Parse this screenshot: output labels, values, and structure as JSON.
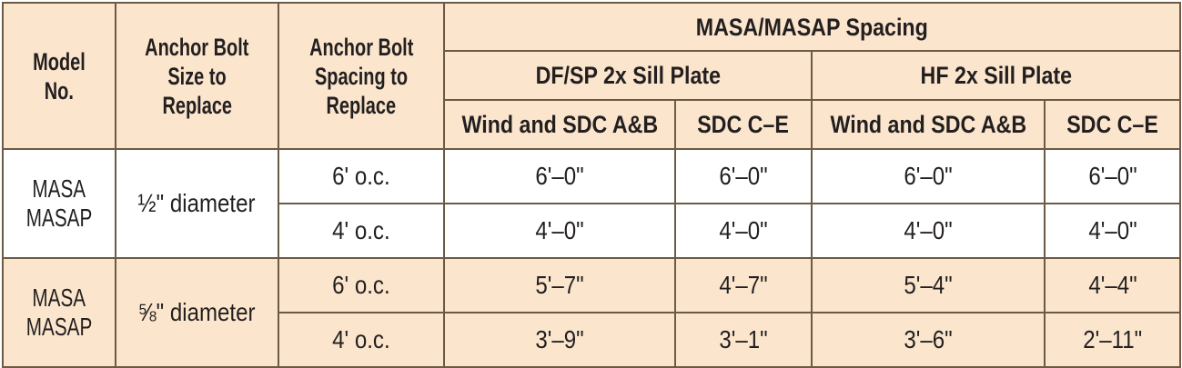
{
  "table": {
    "headers": {
      "model": [
        "Model",
        "No."
      ],
      "bolt_size": [
        "Anchor Bolt",
        "Size to",
        "Replace"
      ],
      "bolt_spacing": [
        "Anchor Bolt",
        "Spacing to",
        "Replace"
      ],
      "group": "MASA/MASAP Spacing",
      "plate_df": "DF/SP 2x Sill Plate",
      "plate_hf": "HF 2x Sill Plate",
      "wind": "Wind and SDC A&B",
      "sdc": "SDC C–E"
    },
    "groups": [
      {
        "model": [
          "MASA",
          "MASAP"
        ],
        "size": "½\" diameter",
        "rows": [
          {
            "spacing": "6' o.c.",
            "df_wind": "6'–0\"",
            "df_sdc": "6'–0\"",
            "hf_wind": "6'–0\"",
            "hf_sdc": "6'–0\""
          },
          {
            "spacing": "4' o.c.",
            "df_wind": "4'–0\"",
            "df_sdc": "4'–0\"",
            "hf_wind": "4'–0\"",
            "hf_sdc": "4'–0\""
          }
        ]
      },
      {
        "model": [
          "MASA",
          "MASAP"
        ],
        "size": "⅝\" diameter",
        "rows": [
          {
            "spacing": "6' o.c.",
            "df_wind": "5'–7\"",
            "df_sdc": "4'–7\"",
            "hf_wind": "5'–4\"",
            "hf_sdc": "4'–4\""
          },
          {
            "spacing": "4' o.c.",
            "df_wind": "3'–9\"",
            "df_sdc": "3'–1\"",
            "hf_wind": "3'–6\"",
            "hf_sdc": "2'–11\""
          }
        ]
      }
    ]
  }
}
